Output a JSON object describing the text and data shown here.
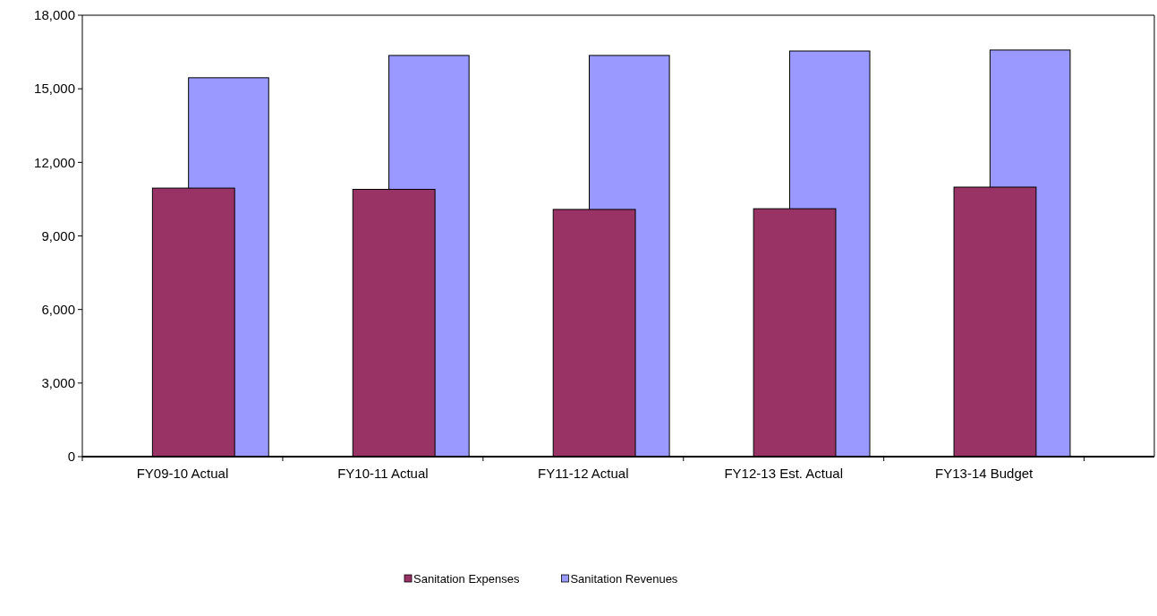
{
  "chart_data": {
    "type": "bar",
    "categories": [
      "FY09-10 Actual",
      "FY10-11 Actual",
      "FY11-12 Actual",
      "FY12-13 Est. Actual",
      "FY13-14 Budget"
    ],
    "series": [
      {
        "name": "Sanitation Expenses",
        "color": "#993366",
        "values": [
          10950,
          10900,
          10080,
          10110,
          10990
        ]
      },
      {
        "name": "Sanitation Revenues",
        "color": "#9999ff",
        "values": [
          15450,
          16360,
          16360,
          16540,
          16580
        ]
      }
    ],
    "ylim": [
      0,
      18000
    ],
    "yticks": [
      {
        "value": 0,
        "label": "0"
      },
      {
        "value": 3000,
        "label": "3,000"
      },
      {
        "value": 6000,
        "label": "6,000"
      },
      {
        "value": 9000,
        "label": "9,000"
      },
      {
        "value": 12000,
        "label": "12,000"
      },
      {
        "value": 15000,
        "label": "15,000"
      },
      {
        "value": 18000,
        "label": "18,000"
      }
    ],
    "legend": "bottom"
  }
}
